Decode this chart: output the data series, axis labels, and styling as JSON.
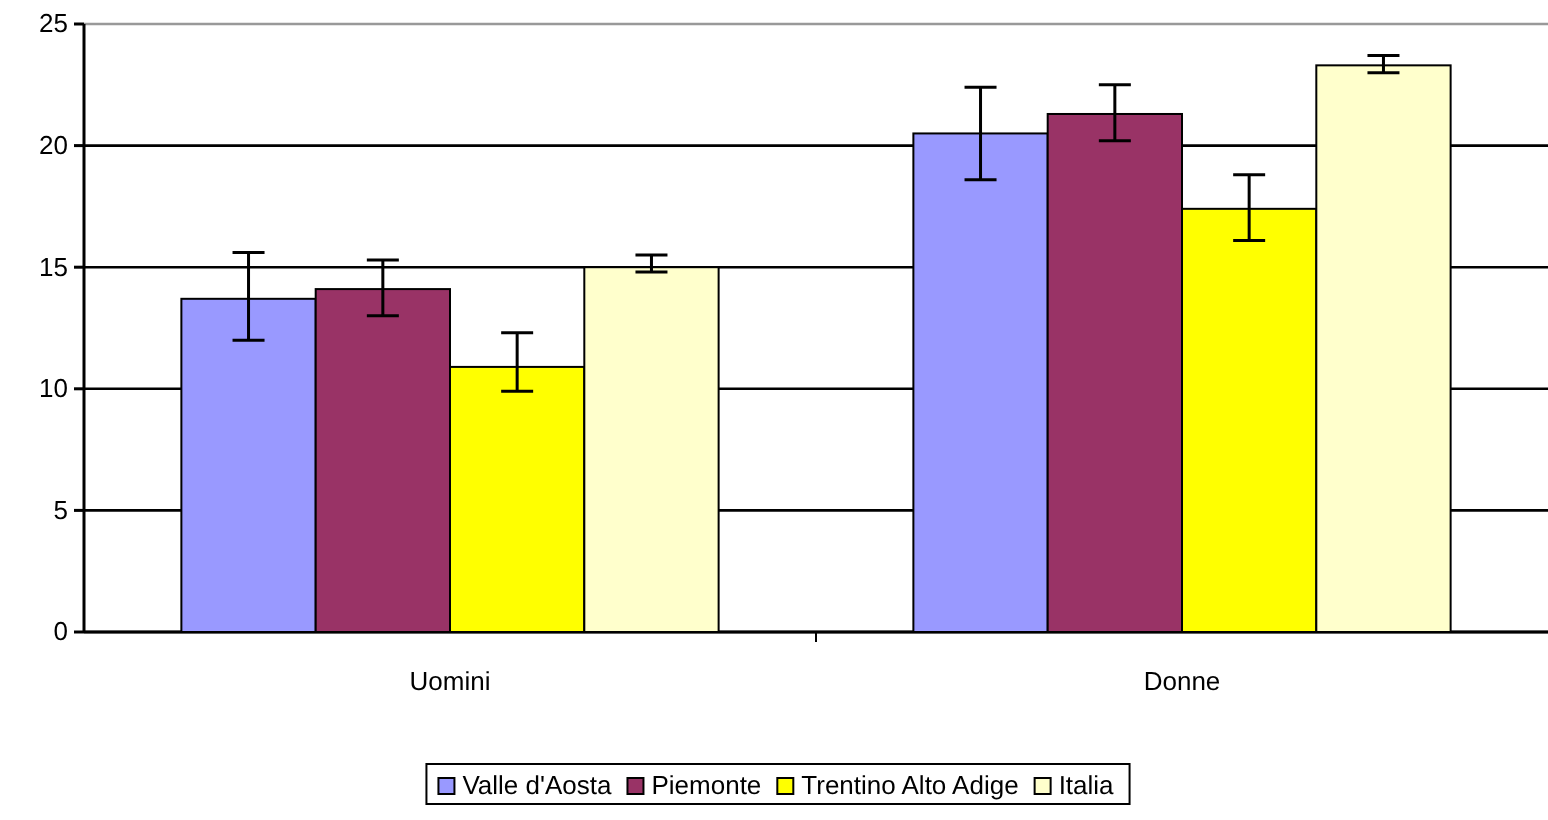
{
  "chart_data": {
    "type": "bar",
    "categories": [
      "Uomini",
      "Donne"
    ],
    "series": [
      {
        "name": "Valle d'Aosta",
        "color": "#9999ff",
        "values": [
          13.7,
          20.5
        ],
        "errors": [
          [
            12.0,
            15.6
          ],
          [
            18.6,
            22.4
          ]
        ]
      },
      {
        "name": "Piemonte",
        "color": "#993366",
        "values": [
          14.1,
          21.3
        ],
        "errors": [
          [
            13.0,
            15.3
          ],
          [
            20.2,
            22.5
          ]
        ]
      },
      {
        "name": "Trentino Alto Adige",
        "color": "#ffff00",
        "values": [
          10.9,
          17.4
        ],
        "errors": [
          [
            9.9,
            12.3
          ],
          [
            16.1,
            18.8
          ]
        ]
      },
      {
        "name": "Italia",
        "color": "#ffffcc",
        "values": [
          15.0,
          23.3
        ],
        "errors": [
          [
            14.8,
            15.5
          ],
          [
            23.0,
            23.7
          ]
        ]
      }
    ],
    "ylim": [
      0,
      25
    ],
    "yticks": [
      0,
      5,
      10,
      15,
      20,
      25
    ],
    "grid": "y",
    "legend": "bottom"
  }
}
